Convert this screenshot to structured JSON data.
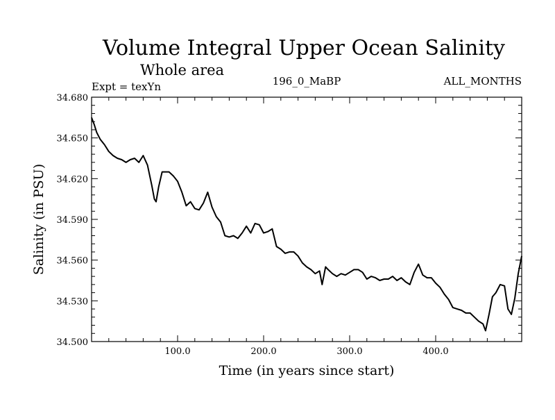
{
  "header": {
    "experiment": "Expt = texYn",
    "run_id": "196_0_MaBP",
    "months": "ALL_MONTHS"
  },
  "chart_data": {
    "type": "line",
    "title": "Volume Integral Upper Ocean Salinity",
    "subtitle": "Whole area",
    "xlabel": "Time (in years since start)",
    "ylabel": "Salinity (in PSU)",
    "xlim": [
      0,
      500
    ],
    "ylim": [
      34.5,
      34.68
    ],
    "xticks": [
      100,
      200,
      300,
      400
    ],
    "xtick_labels": [
      "100.0",
      "200.0",
      "300.0",
      "400.0"
    ],
    "yticks": [
      34.5,
      34.53,
      34.56,
      34.59,
      34.62,
      34.65,
      34.68
    ],
    "ytick_labels": [
      "34.500",
      "34.530",
      "34.560",
      "34.590",
      "34.620",
      "34.650",
      "34.680"
    ],
    "grid": false,
    "series": [
      {
        "x": [
          0,
          3,
          6,
          10,
          15,
          20,
          25,
          30,
          35,
          40,
          45,
          50,
          55,
          60,
          65,
          70,
          73,
          75,
          78,
          82,
          85,
          90,
          95,
          100,
          105,
          110,
          115,
          120,
          125,
          130,
          135,
          140,
          145,
          150,
          155,
          160,
          165,
          170,
          175,
          180,
          185,
          190,
          195,
          200,
          205,
          210,
          215,
          220,
          225,
          230,
          235,
          240,
          245,
          250,
          255,
          260,
          265,
          268,
          272,
          275,
          280,
          285,
          290,
          295,
          300,
          305,
          310,
          315,
          320,
          325,
          330,
          335,
          340,
          345,
          350,
          355,
          360,
          365,
          370,
          375,
          380,
          385,
          390,
          395,
          400,
          405,
          410,
          415,
          420,
          425,
          430,
          435,
          440,
          445,
          450,
          455,
          458,
          462,
          466,
          470,
          475,
          480,
          484,
          488,
          492,
          496,
          500
        ],
        "y": [
          34.665,
          34.66,
          34.654,
          34.649,
          34.645,
          34.64,
          34.637,
          34.635,
          34.634,
          34.632,
          34.634,
          34.635,
          34.632,
          34.637,
          34.63,
          34.615,
          34.605,
          34.603,
          34.614,
          34.625,
          34.625,
          34.625,
          34.622,
          34.618,
          34.61,
          34.6,
          34.603,
          34.598,
          34.597,
          34.602,
          34.61,
          34.599,
          34.592,
          34.588,
          34.578,
          34.577,
          34.578,
          34.576,
          34.58,
          34.585,
          34.58,
          34.587,
          34.586,
          34.58,
          34.581,
          34.583,
          34.57,
          34.568,
          34.565,
          34.566,
          34.566,
          34.563,
          34.558,
          34.555,
          34.553,
          34.55,
          34.552,
          34.542,
          34.555,
          34.553,
          34.55,
          34.548,
          34.55,
          34.549,
          34.551,
          34.553,
          34.553,
          34.551,
          34.546,
          34.548,
          34.547,
          34.545,
          34.546,
          34.546,
          34.548,
          34.545,
          34.547,
          34.544,
          34.542,
          34.551,
          34.557,
          34.549,
          34.547,
          34.547,
          34.543,
          34.54,
          34.535,
          34.531,
          34.525,
          34.524,
          34.523,
          34.521,
          34.521,
          34.518,
          34.515,
          34.513,
          34.508,
          34.52,
          34.533,
          34.536,
          34.542,
          34.541,
          34.524,
          34.52,
          34.532,
          34.55,
          34.563
        ]
      }
    ]
  }
}
